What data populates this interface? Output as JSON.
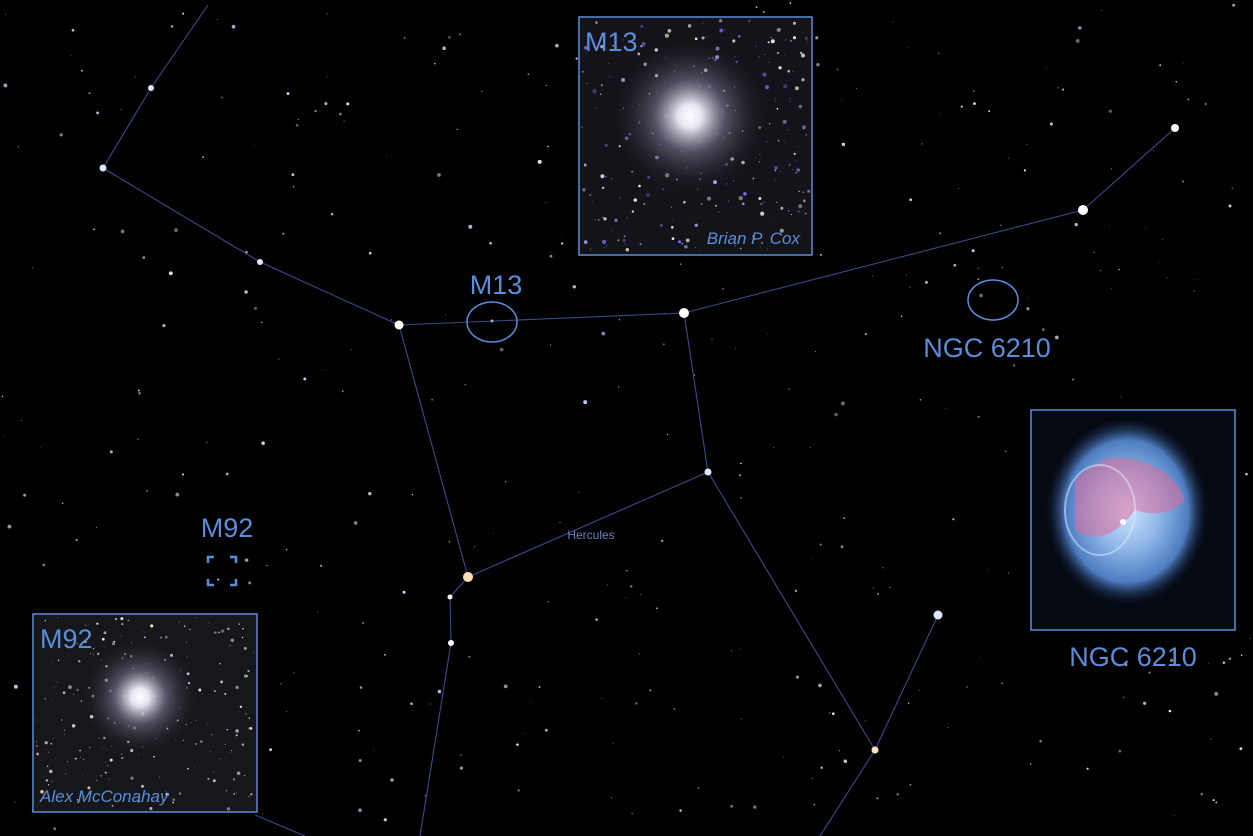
{
  "markers": [
    {
      "label": "M13"
    },
    {
      "label": "NGC 6210"
    },
    {
      "label": "M92"
    }
  ],
  "insets": [
    {
      "title": "M13",
      "credit": "Brian P. Cox"
    },
    {
      "caption": "NGC 6210"
    },
    {
      "title": "M92",
      "credit": "Alex McConahay"
    }
  ],
  "constellation": {
    "name": "Hercules"
  }
}
